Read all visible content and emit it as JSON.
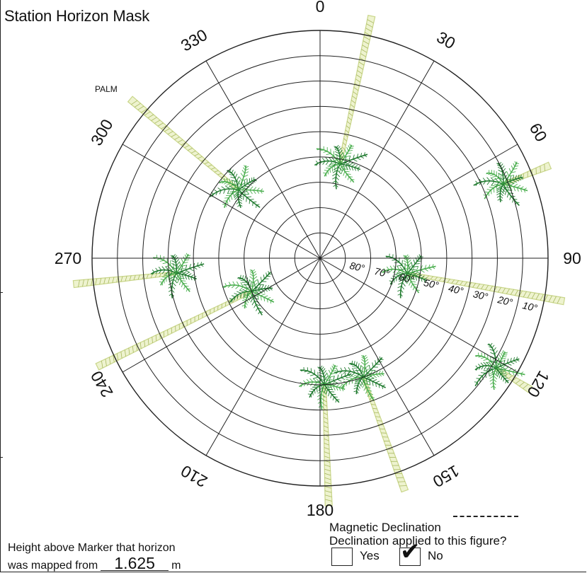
{
  "title": "Station Horizon Mask",
  "observer_label": "PALM",
  "azimuth_labels": [
    "0",
    "30",
    "60",
    "90",
    "120",
    "150",
    "180",
    "210",
    "240",
    "270",
    "300",
    "330"
  ],
  "elevation_labels": [
    "80°",
    "70°",
    "60°",
    "50°",
    "40°",
    "30°",
    "20°",
    "10°"
  ],
  "rings_elevation_deg": [
    0,
    10,
    20,
    30,
    40,
    50,
    60,
    70,
    80
  ],
  "trees": [
    {
      "az": 12,
      "el": 52,
      "trunk_color": "#c9d68a"
    },
    {
      "az": 68,
      "el": 12,
      "trunk_color": "#c9d68a"
    },
    {
      "az": 100,
      "el": 55,
      "trunk_color": "#c9d68a"
    },
    {
      "az": 122,
      "el": 8,
      "trunk_color": "#c9d68a"
    },
    {
      "az": 160,
      "el": 40,
      "trunk_color": "#c9d68a"
    },
    {
      "az": 178,
      "el": 40,
      "trunk_color": "#c9d68a"
    },
    {
      "az": 244,
      "el": 60,
      "trunk_color": "#c9d68a"
    },
    {
      "az": 264,
      "el": 33,
      "trunk_color": "#c9d68a"
    },
    {
      "az": 310,
      "el": 48,
      "trunk_color": "#c9d68a"
    }
  ],
  "frond_colors": [
    "#1f7a2e",
    "#4caf50"
  ],
  "declaration": {
    "magnetic_declination": "Magnetic Declination",
    "question": "Declination applied to this figure?",
    "yes_label": "Yes",
    "no_label": "No",
    "yes_checked": false,
    "no_checked": true,
    "check_glyph": "✔"
  },
  "height": {
    "line1": "Height above Marker that horizon",
    "prefix": "was mapped from",
    "value": "1.625",
    "unit": "m"
  }
}
